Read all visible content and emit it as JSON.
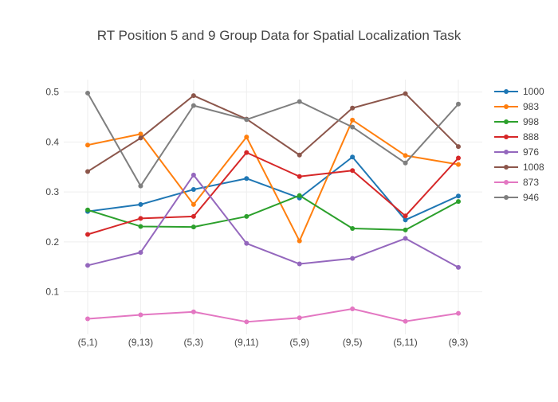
{
  "chart_data": {
    "type": "line",
    "title": "RT Position 5 and 9 Group Data for Spatial Localization Task",
    "xlabel": "",
    "ylabel": "",
    "categories": [
      "(5,1)",
      "(9,13)",
      "(5,3)",
      "(9,11)",
      "(5,9)",
      "(9,5)",
      "(5,11)",
      "(9,3)"
    ],
    "y_ticks": [
      0.1,
      0.2,
      0.3,
      0.4,
      0.5
    ],
    "y_tick_labels": [
      "0.1",
      "0.2",
      "0.3",
      "0.4",
      "0.5"
    ],
    "ylim": [
      0.015,
      0.525
    ],
    "grid": true,
    "legend_position": "right",
    "series": [
      {
        "name": "1000",
        "color": "#1f77b4",
        "values": [
          0.261,
          0.275,
          0.305,
          0.327,
          0.288,
          0.37,
          0.244,
          0.292
        ]
      },
      {
        "name": "983",
        "color": "#ff7f0e",
        "values": [
          0.394,
          0.416,
          0.275,
          0.41,
          0.202,
          0.444,
          0.373,
          0.355
        ]
      },
      {
        "name": "998",
        "color": "#2ca02c",
        "values": [
          0.264,
          0.231,
          0.23,
          0.251,
          0.293,
          0.227,
          0.224,
          0.281
        ]
      },
      {
        "name": "888",
        "color": "#d62728",
        "values": [
          0.215,
          0.247,
          0.251,
          0.379,
          0.331,
          0.343,
          0.252,
          0.368
        ]
      },
      {
        "name": "976",
        "color": "#9467bd",
        "values": [
          0.153,
          0.179,
          0.334,
          0.197,
          0.156,
          0.167,
          0.207,
          0.149
        ]
      },
      {
        "name": "1008",
        "color": "#8c564b",
        "values": [
          0.341,
          0.408,
          0.493,
          0.446,
          0.374,
          0.468,
          0.497,
          0.391
        ]
      },
      {
        "name": "873",
        "color": "#e377c2",
        "values": [
          0.046,
          0.054,
          0.06,
          0.04,
          0.048,
          0.066,
          0.041,
          0.057
        ]
      },
      {
        "name": "946",
        "color": "#7f7f7f",
        "values": [
          0.498,
          0.312,
          0.473,
          0.445,
          0.481,
          0.43,
          0.358,
          0.476
        ]
      }
    ]
  }
}
